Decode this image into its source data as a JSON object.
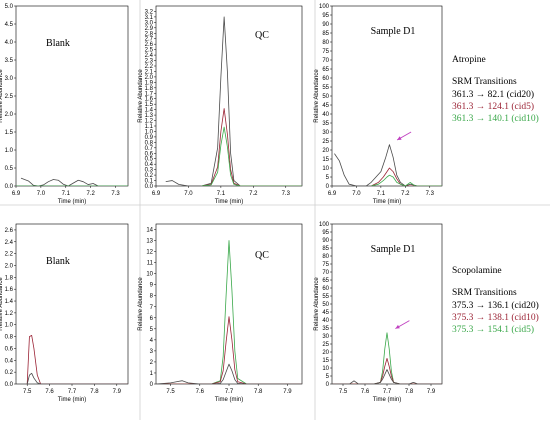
{
  "colors": {
    "cid_black": "#4a4a4a",
    "cid_red": "#9b2335",
    "cid_green": "#3aa84a",
    "arrow": "#c040c0",
    "frame": "#000000"
  },
  "legends": [
    {
      "compound": "Atropine",
      "heading": "SRM Transitions",
      "entries": [
        {
          "text": "361.3 → 82.1 (cid20)",
          "color": "#000000"
        },
        {
          "text": "361.3 → 124.1 (cid5)",
          "color": "#9b2335"
        },
        {
          "text": "361.3 → 140.1 (cid10)",
          "color": "#3aa84a"
        }
      ]
    },
    {
      "compound": "Scopolamine",
      "heading": "SRM Transitions",
      "entries": [
        {
          "text": "375.3 → 136.1 (cid20)",
          "color": "#000000"
        },
        {
          "text": "375.3 → 138.1 (cid10)",
          "color": "#9b2335"
        },
        {
          "text": "375.3 → 154.1 (cid5)",
          "color": "#3aa84a"
        }
      ]
    }
  ],
  "chart_data": [
    {
      "type": "line",
      "row": 0,
      "col": 0,
      "label": "Blank",
      "xlabel": "Time (min)",
      "ylabel": "Relative Abundance",
      "xlim": [
        6.9,
        7.35
      ],
      "ylim": [
        0,
        5.0
      ],
      "xticks": [
        6.9,
        7.0,
        7.1,
        7.2,
        7.3
      ],
      "yticks": [
        0,
        0.5,
        1,
        1.5,
        2,
        2.5,
        3,
        3.5,
        4,
        4.5,
        5
      ],
      "arrow": null,
      "series": [
        {
          "color": "#4a4a4a",
          "x": [
            6.92,
            6.95,
            6.97,
            6.99,
            7.01,
            7.03,
            7.05,
            7.07,
            7.09,
            7.11,
            7.13,
            7.15,
            7.17,
            7.19,
            7.21,
            7.23
          ],
          "y": [
            0.22,
            0.14,
            0.02,
            0.0,
            0.03,
            0.12,
            0.18,
            0.16,
            0.05,
            0.0,
            0.08,
            0.16,
            0.12,
            0.04,
            0.07,
            0.0
          ]
        },
        {
          "color": "#3aa84a",
          "x": [
            6.9,
            7.35
          ],
          "y": [
            0.0,
            0.0
          ]
        }
      ]
    },
    {
      "type": "line",
      "row": 0,
      "col": 1,
      "label": "QC",
      "xlabel": "Time (min)",
      "ylabel": "Relative Abundance",
      "xlim": [
        6.9,
        7.35
      ],
      "ylim": [
        0,
        3.3
      ],
      "xticks": [
        6.9,
        7.0,
        7.1,
        7.2,
        7.3
      ],
      "yticks": [
        0,
        0.1,
        0.2,
        0.3,
        0.4,
        0.5,
        0.6,
        0.7,
        0.8,
        0.9,
        1.0,
        1.1,
        1.2,
        1.3,
        1.4,
        1.5,
        1.6,
        1.7,
        1.8,
        1.9,
        2.0,
        2.1,
        2.2,
        2.3,
        2.4,
        2.5,
        2.6,
        2.7,
        2.8,
        2.9,
        3.0,
        3.1,
        3.2
      ],
      "arrow": null,
      "series": [
        {
          "color": "#4a4a4a",
          "x": [
            6.93,
            6.95,
            6.97,
            7.0,
            7.04,
            7.07,
            7.09,
            7.1,
            7.11,
            7.12,
            7.13,
            7.14,
            7.16,
            7.2,
            7.25,
            7.35
          ],
          "y": [
            0.08,
            0.1,
            0.03,
            0.0,
            0.0,
            0.05,
            0.7,
            2.0,
            3.1,
            2.1,
            0.6,
            0.1,
            0.0,
            0.0,
            0.0,
            0.0
          ]
        },
        {
          "color": "#9b2335",
          "x": [
            7.04,
            7.07,
            7.09,
            7.1,
            7.11,
            7.12,
            7.13,
            7.14,
            7.16,
            7.35
          ],
          "y": [
            0.0,
            0.03,
            0.35,
            1.0,
            1.42,
            0.95,
            0.3,
            0.05,
            0.0,
            0.0
          ]
        },
        {
          "color": "#3aa84a",
          "x": [
            7.04,
            7.07,
            7.09,
            7.1,
            7.11,
            7.12,
            7.13,
            7.14,
            7.16,
            7.35
          ],
          "y": [
            0.0,
            0.02,
            0.25,
            0.75,
            1.08,
            0.72,
            0.2,
            0.03,
            0.0,
            0.0
          ]
        }
      ]
    },
    {
      "type": "line",
      "row": 0,
      "col": 2,
      "label": "Sample D1",
      "xlabel": "Time (min)",
      "ylabel": "Relative Abundance",
      "xlim": [
        6.9,
        7.35
      ],
      "ylim": [
        0,
        100
      ],
      "xticks": [
        6.9,
        7.0,
        7.1,
        7.2,
        7.3
      ],
      "yticks": [
        0,
        5,
        10,
        15,
        20,
        25,
        30,
        35,
        40,
        45,
        50,
        55,
        60,
        65,
        70,
        75,
        80,
        85,
        90,
        95,
        100
      ],
      "arrow": {
        "x": 7.15,
        "y": 25
      },
      "series": [
        {
          "color": "#4a4a4a",
          "x": [
            6.91,
            6.93,
            6.95,
            6.97,
            7.0,
            7.04,
            7.06,
            7.08,
            7.1,
            7.12,
            7.135,
            7.15,
            7.165,
            7.18,
            7.2,
            7.22,
            7.25,
            7.35
          ],
          "y": [
            18,
            14,
            6,
            1,
            0,
            0,
            2,
            5,
            8,
            16,
            23,
            16,
            6,
            2,
            0,
            1,
            0,
            0
          ]
        },
        {
          "color": "#9b2335",
          "x": [
            7.06,
            7.09,
            7.11,
            7.125,
            7.135,
            7.15,
            7.165,
            7.18,
            7.2,
            7.35
          ],
          "y": [
            0,
            2,
            5,
            8,
            10,
            8,
            4,
            1,
            0,
            0
          ]
        },
        {
          "color": "#3aa84a",
          "x": [
            7.06,
            7.09,
            7.11,
            7.125,
            7.135,
            7.15,
            7.165,
            7.18,
            7.2,
            7.22,
            7.24,
            7.35
          ],
          "y": [
            0,
            1,
            3,
            5,
            6,
            5,
            2,
            1,
            0,
            2,
            0,
            0
          ]
        }
      ]
    },
    {
      "type": "line",
      "row": 1,
      "col": 0,
      "label": "Blank",
      "xlabel": "Time (min)",
      "ylabel": "Relative Abundance",
      "xlim": [
        7.45,
        7.95
      ],
      "ylim": [
        0,
        2.7
      ],
      "xticks": [
        7.5,
        7.6,
        7.7,
        7.8,
        7.9
      ],
      "yticks": [
        0,
        0.2,
        0.4,
        0.6,
        0.8,
        1.0,
        1.2,
        1.4,
        1.6,
        1.8,
        2.0,
        2.2,
        2.4,
        2.6
      ],
      "arrow": null,
      "series": [
        {
          "color": "#9b2335",
          "x": [
            7.5,
            7.51,
            7.52,
            7.53,
            7.545,
            7.56,
            7.6,
            7.95
          ],
          "y": [
            0.0,
            0.8,
            0.82,
            0.6,
            0.15,
            0.0,
            0.0,
            0.0
          ]
        },
        {
          "color": "#4a4a4a",
          "x": [
            7.5,
            7.51,
            7.52,
            7.53,
            7.545,
            7.56,
            7.6,
            7.95
          ],
          "y": [
            0.0,
            0.15,
            0.18,
            0.1,
            0.02,
            0.0,
            0.0,
            0.0
          ]
        }
      ]
    },
    {
      "type": "line",
      "row": 1,
      "col": 1,
      "label": "QC",
      "xlabel": "Time (min)",
      "ylabel": "Relative Abundance",
      "xlim": [
        7.45,
        7.95
      ],
      "ylim": [
        0,
        14.5
      ],
      "xticks": [
        7.5,
        7.6,
        7.7,
        7.8,
        7.9
      ],
      "yticks": [
        0,
        1,
        2,
        3,
        4,
        5,
        6,
        7,
        8,
        9,
        10,
        11,
        12,
        13,
        14
      ],
      "arrow": null,
      "series": [
        {
          "color": "#3aa84a",
          "x": [
            7.45,
            7.64,
            7.67,
            7.68,
            7.69,
            7.7,
            7.71,
            7.72,
            7.73,
            7.76,
            7.95
          ],
          "y": [
            0,
            0,
            0.3,
            2.5,
            8,
            13,
            8.5,
            3,
            0.5,
            0,
            0
          ]
        },
        {
          "color": "#9b2335",
          "x": [
            7.45,
            7.64,
            7.67,
            7.68,
            7.69,
            7.7,
            7.71,
            7.72,
            7.73,
            7.76,
            7.95
          ],
          "y": [
            0,
            0,
            0.2,
            1.2,
            3.8,
            6.1,
            4,
            1.3,
            0.2,
            0,
            0
          ]
        },
        {
          "color": "#4a4a4a",
          "x": [
            7.45,
            7.5,
            7.52,
            7.54,
            7.56,
            7.6,
            7.64,
            7.67,
            7.68,
            7.69,
            7.7,
            7.71,
            7.72,
            7.73,
            7.76,
            7.95
          ],
          "y": [
            0,
            0.1,
            0.2,
            0.3,
            0.1,
            0,
            0,
            0.05,
            0.4,
            1.1,
            1.8,
            1.2,
            0.4,
            0.05,
            0,
            0
          ]
        }
      ]
    },
    {
      "type": "line",
      "row": 1,
      "col": 2,
      "label": "Sample D1",
      "xlabel": "Time (min)",
      "ylabel": "Relative Abundance",
      "xlim": [
        7.45,
        7.95
      ],
      "ylim": [
        0,
        100
      ],
      "xticks": [
        7.5,
        7.6,
        7.7,
        7.8,
        7.9
      ],
      "yticks": [
        0,
        5,
        10,
        15,
        20,
        25,
        30,
        35,
        40,
        45,
        50,
        55,
        60,
        65,
        70,
        75,
        80,
        85,
        90,
        95,
        100
      ],
      "arrow": {
        "x": 7.72,
        "y": 34
      },
      "series": [
        {
          "color": "#3aa84a",
          "x": [
            7.45,
            7.64,
            7.67,
            7.68,
            7.69,
            7.7,
            7.71,
            7.72,
            7.73,
            7.76,
            7.95
          ],
          "y": [
            0,
            0,
            1,
            8,
            22,
            32,
            22,
            8,
            1,
            0,
            0
          ]
        },
        {
          "color": "#9b2335",
          "x": [
            7.45,
            7.64,
            7.67,
            7.68,
            7.69,
            7.7,
            7.71,
            7.72,
            7.73,
            7.76,
            7.95
          ],
          "y": [
            0,
            0,
            1,
            5,
            11,
            16,
            11,
            5,
            1,
            0,
            0
          ]
        },
        {
          "color": "#4a4a4a",
          "x": [
            7.45,
            7.53,
            7.55,
            7.57,
            7.64,
            7.67,
            7.68,
            7.69,
            7.7,
            7.71,
            7.72,
            7.73,
            7.76,
            7.8,
            7.82,
            7.84,
            7.95
          ],
          "y": [
            0,
            0,
            2,
            0,
            0,
            1,
            3,
            6,
            9,
            6,
            3,
            1,
            0,
            0,
            1,
            0,
            0
          ]
        }
      ]
    }
  ]
}
